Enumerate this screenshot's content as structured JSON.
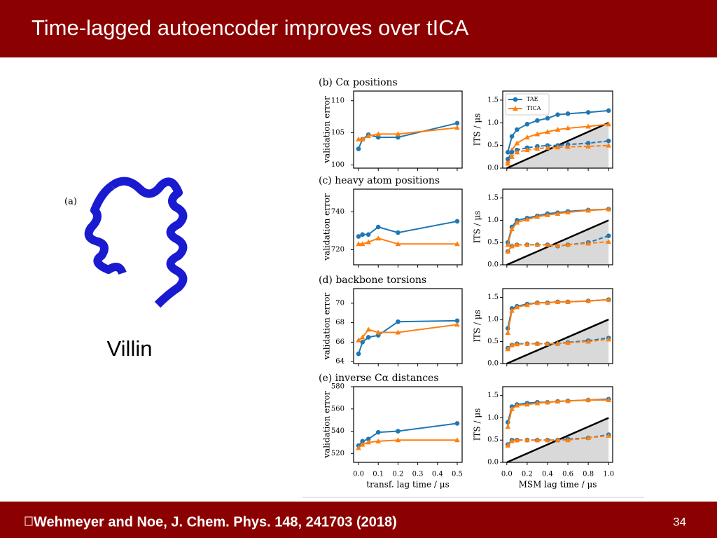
{
  "slide": {
    "title": "Time-lagged autoencoder improves over tICA",
    "footer": "Wehmeyer and Noe, J. Chem. Phys. 148, 241703 (2018)",
    "page_number": "34"
  },
  "figure": {
    "panel_a": "(a)",
    "molecule": "Villin",
    "legend": [
      {
        "name": "TAE",
        "color": "#1f77b4",
        "marker": "circle"
      },
      {
        "name": "TICA",
        "color": "#ff7f0e",
        "marker": "triangle"
      }
    ],
    "legend_corner": "upper left",
    "left_ylabel": "validation error",
    "right_ylabel": "ITS / μs",
    "left_x": {
      "label": "transf. lag time / μs",
      "xlim": [
        -0.025,
        0.525
      ],
      "xticks": [
        {
          "value": 0,
          "label": "0.0"
        },
        0.1,
        0.2,
        0.3,
        0.4,
        0.5
      ],
      "points": [
        0,
        0.02,
        0.05,
        0.1,
        0.2,
        0.5
      ]
    },
    "right_x": {
      "label": "MSM lag time / μs",
      "xlim": [
        -0.04,
        1.04
      ],
      "xticks": [
        {
          "value": 0,
          "label": "0.0"
        },
        0.2,
        0.4,
        0.6,
        0.8,
        {
          "value": 1,
          "label": "1.0"
        }
      ],
      "points": [
        0.01,
        0.05,
        0.1,
        0.2,
        0.3,
        0.4,
        0.5,
        0.6,
        0.8,
        1.0
      ]
    },
    "reference_line": {
      "x": [
        0,
        1
      ],
      "y": [
        0,
        1
      ]
    },
    "panels": [
      {
        "label": "(b) Cα positions",
        "left": {
          "ylim": [
            99.5,
            111.5
          ],
          "yticks": [
            100,
            105,
            110
          ],
          "series": [
            {
              "legend": 0,
              "values": [
                102.5,
                104,
                104.7,
                104.3,
                104.3,
                106.5
              ]
            },
            {
              "legend": 1,
              "values": [
                104,
                104,
                104.5,
                104.8,
                104.8,
                105.8
              ]
            }
          ]
        },
        "right": {
          "ylim": [
            0,
            1.7
          ],
          "yticks": [
            {
              "value": 0,
              "label": "0.0"
            },
            0.5,
            {
              "value": 1,
              "label": "1.0"
            },
            1.5
          ],
          "series": [
            {
              "legend": 0,
              "dashed": false,
              "values": [
                0.35,
                0.7,
                0.85,
                0.97,
                1.05,
                1.1,
                1.18,
                1.2,
                1.23,
                1.27
              ]
            },
            {
              "legend": 1,
              "dashed": false,
              "values": [
                0.15,
                0.4,
                0.55,
                0.68,
                0.75,
                0.8,
                0.85,
                0.88,
                0.92,
                0.97
              ]
            },
            {
              "legend": 0,
              "dashed": true,
              "values": [
                0.2,
                0.35,
                0.4,
                0.45,
                0.48,
                0.5,
                0.5,
                0.52,
                0.55,
                0.6
              ]
            },
            {
              "legend": 1,
              "dashed": true,
              "values": [
                0.1,
                0.25,
                0.35,
                0.4,
                0.43,
                0.45,
                0.46,
                0.47,
                0.48,
                0.5
              ]
            }
          ]
        }
      },
      {
        "label": "(c) heavy atom positions",
        "left": {
          "ylim": [
            712,
            752
          ],
          "yticks": [
            720,
            740
          ],
          "series": [
            {
              "legend": 0,
              "values": [
                727,
                728,
                728,
                732,
                729,
                735
              ]
            },
            {
              "legend": 1,
              "values": [
                723,
                723,
                724,
                726,
                723,
                723
              ]
            }
          ]
        },
        "right": {
          "ylim": [
            0,
            1.7
          ],
          "yticks": [
            {
              "value": 0,
              "label": "0.0"
            },
            0.5,
            {
              "value": 1,
              "label": "1.0"
            },
            1.5
          ],
          "series": [
            {
              "legend": 0,
              "dashed": false,
              "values": [
                0.5,
                0.85,
                1.0,
                1.05,
                1.1,
                1.15,
                1.17,
                1.2,
                1.23,
                1.25
              ]
            },
            {
              "legend": 1,
              "dashed": false,
              "values": [
                0.45,
                0.8,
                0.95,
                1.02,
                1.08,
                1.12,
                1.15,
                1.18,
                1.22,
                1.25
              ]
            },
            {
              "legend": 0,
              "dashed": true,
              "values": [
                0.3,
                0.42,
                0.45,
                0.45,
                0.45,
                0.45,
                0.42,
                0.45,
                0.5,
                0.65
              ]
            },
            {
              "legend": 1,
              "dashed": true,
              "values": [
                0.3,
                0.42,
                0.45,
                0.45,
                0.45,
                0.45,
                0.43,
                0.45,
                0.48,
                0.52
              ]
            }
          ]
        }
      },
      {
        "label": "(d) backbone torsions",
        "left": {
          "ylim": [
            63.8,
            71.5
          ],
          "yticks": [
            64,
            66,
            68,
            70
          ],
          "series": [
            {
              "legend": 0,
              "values": [
                64.8,
                66,
                66.5,
                66.7,
                68.1,
                68.2
              ]
            },
            {
              "legend": 1,
              "values": [
                66.2,
                66.5,
                67.3,
                67,
                67,
                67.8
              ]
            }
          ]
        },
        "right": {
          "ylim": [
            0,
            1.7
          ],
          "yticks": [
            {
              "value": 0,
              "label": "0.0"
            },
            0.5,
            {
              "value": 1,
              "label": "1.0"
            },
            1.5
          ],
          "series": [
            {
              "legend": 0,
              "dashed": false,
              "values": [
                0.8,
                1.25,
                1.3,
                1.35,
                1.38,
                1.38,
                1.4,
                1.4,
                1.42,
                1.45
              ]
            },
            {
              "legend": 1,
              "dashed": false,
              "values": [
                0.7,
                1.2,
                1.28,
                1.33,
                1.38,
                1.38,
                1.4,
                1.4,
                1.42,
                1.45
              ]
            },
            {
              "legend": 0,
              "dashed": true,
              "values": [
                0.35,
                0.42,
                0.45,
                0.45,
                0.45,
                0.45,
                0.45,
                0.48,
                0.52,
                0.58
              ]
            },
            {
              "legend": 1,
              "dashed": true,
              "values": [
                0.33,
                0.42,
                0.44,
                0.45,
                0.45,
                0.45,
                0.45,
                0.47,
                0.5,
                0.55
              ]
            }
          ]
        }
      },
      {
        "label": "(e) inverse Cα distances",
        "left": {
          "ylim": [
            512,
            580
          ],
          "yticks": [
            520,
            540,
            560,
            580
          ],
          "series": [
            {
              "legend": 0,
              "values": [
                527,
                531,
                533,
                539,
                540,
                547
              ]
            },
            {
              "legend": 1,
              "values": [
                525,
                528,
                530,
                531,
                532,
                532
              ]
            }
          ]
        },
        "right": {
          "ylim": [
            0,
            1.7
          ],
          "yticks": [
            {
              "value": 0,
              "label": "0.0"
            },
            0.5,
            {
              "value": 1,
              "label": "1.0"
            },
            1.5
          ],
          "series": [
            {
              "legend": 0,
              "dashed": false,
              "values": [
                0.9,
                1.25,
                1.3,
                1.33,
                1.35,
                1.35,
                1.37,
                1.38,
                1.4,
                1.42
              ]
            },
            {
              "legend": 1,
              "dashed": false,
              "values": [
                0.8,
                1.2,
                1.28,
                1.3,
                1.33,
                1.35,
                1.37,
                1.38,
                1.4,
                1.4
              ]
            },
            {
              "legend": 0,
              "dashed": true,
              "values": [
                0.4,
                0.5,
                0.5,
                0.5,
                0.5,
                0.5,
                0.5,
                0.52,
                0.55,
                0.62
              ]
            },
            {
              "legend": 1,
              "dashed": true,
              "values": [
                0.38,
                0.48,
                0.5,
                0.5,
                0.5,
                0.5,
                0.5,
                0.5,
                0.55,
                0.6
              ]
            }
          ]
        }
      }
    ]
  }
}
